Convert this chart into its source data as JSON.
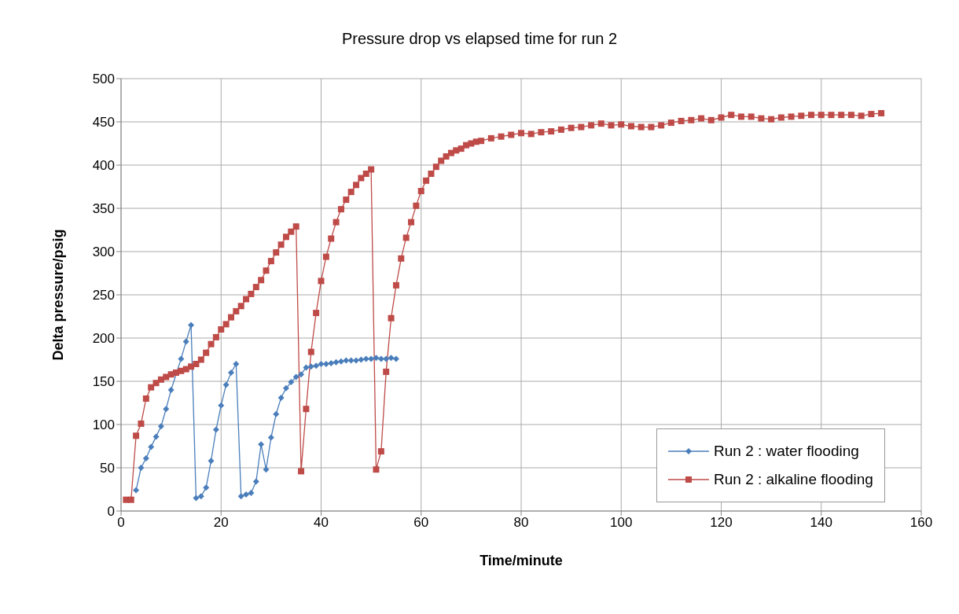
{
  "chart_data": {
    "type": "line",
    "title": "Pressure drop vs elapsed time for run 2",
    "xlabel": "Time/minute",
    "ylabel": "Delta pressure/psig",
    "xlim": [
      0,
      160
    ],
    "xticks": [
      0,
      20,
      40,
      60,
      80,
      100,
      120,
      140,
      160
    ],
    "ylim": [
      0,
      500
    ],
    "yticks": [
      0,
      50,
      100,
      150,
      200,
      250,
      300,
      350,
      400,
      450,
      500
    ],
    "grid": true,
    "legend": "bottom right",
    "line_style": "solid",
    "series": [
      {
        "name": "Run 2 : water flooding",
        "color": "#4a7ebb",
        "marker": "diamond",
        "x": [
          3,
          4,
          5,
          6,
          7,
          8,
          9,
          10,
          12,
          13,
          14,
          15,
          16,
          17,
          18,
          19,
          20,
          21,
          22,
          23,
          24,
          25,
          26,
          27,
          28,
          29,
          30,
          31,
          32,
          33,
          34,
          35,
          36,
          37,
          38,
          39,
          40,
          41,
          42,
          43,
          44,
          45,
          46,
          47,
          48,
          49,
          50,
          51,
          52,
          53,
          54,
          55
        ],
        "values": [
          24,
          50,
          61,
          74,
          86,
          98,
          118,
          140,
          176,
          196,
          215,
          15,
          17,
          27,
          58,
          94,
          122,
          146,
          160,
          170,
          17,
          19,
          21,
          34,
          77,
          48,
          85,
          112,
          131,
          142,
          149,
          155,
          158,
          166,
          167,
          168,
          170,
          170,
          171,
          172,
          173,
          174,
          174,
          174,
          175,
          176,
          176,
          177,
          176,
          176,
          177,
          176
        ]
      },
      {
        "name": "Run 2 : alkaline flooding",
        "color": "#be4b48",
        "marker": "square",
        "x": [
          1,
          2,
          3,
          4,
          5,
          6,
          7,
          8,
          9,
          10,
          11,
          12,
          13,
          14,
          15,
          16,
          17,
          18,
          19,
          20,
          21,
          22,
          23,
          24,
          25,
          26,
          27,
          28,
          29,
          30,
          31,
          32,
          33,
          34,
          35,
          36,
          37,
          38,
          39,
          40,
          41,
          42,
          43,
          44,
          45,
          46,
          47,
          48,
          49,
          50,
          51,
          52,
          53,
          54,
          55,
          56,
          57,
          58,
          59,
          60,
          61,
          62,
          63,
          64,
          65,
          66,
          67,
          68,
          69,
          70,
          71,
          72,
          74,
          76,
          78,
          80,
          82,
          84,
          86,
          88,
          90,
          92,
          94,
          96,
          98,
          100,
          102,
          104,
          106,
          108,
          110,
          112,
          114,
          116,
          118,
          120,
          122,
          124,
          126,
          128,
          130,
          132,
          134,
          136,
          138,
          140,
          142,
          144,
          146,
          148,
          150,
          152
        ],
        "values": [
          13,
          13,
          87,
          101,
          130,
          143,
          148,
          152,
          155,
          158,
          160,
          162,
          164,
          167,
          170,
          175,
          183,
          193,
          201,
          210,
          216,
          224,
          231,
          237,
          245,
          251,
          259,
          267,
          278,
          289,
          299,
          308,
          317,
          323,
          329,
          46,
          118,
          184,
          229,
          266,
          294,
          315,
          334,
          349,
          360,
          369,
          377,
          385,
          390,
          395,
          48,
          69,
          161,
          223,
          261,
          292,
          316,
          334,
          353,
          370,
          382,
          390,
          398,
          405,
          410,
          414,
          417,
          419,
          423,
          425,
          427,
          428,
          431,
          433,
          435,
          437,
          436,
          438,
          439,
          441,
          443,
          444,
          446,
          448,
          446,
          447,
          445,
          444,
          444,
          446,
          449,
          451,
          452,
          454,
          452,
          455,
          458,
          456,
          456,
          454,
          453,
          455,
          456,
          457,
          458,
          458,
          458,
          458,
          458,
          457,
          459,
          460
        ]
      }
    ]
  }
}
